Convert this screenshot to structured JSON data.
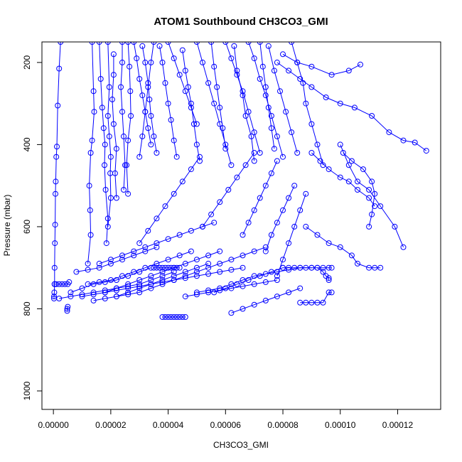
{
  "chart_data": {
    "type": "line",
    "title": "ATOM1 Southbound CH3CO3_GMI",
    "xlabel": "CH3CO3_GMI",
    "ylabel": "Pressure (mbar)",
    "xlim": [
      -4e-06,
      0.000135
    ],
    "ylim": [
      1045,
      150
    ],
    "y_reversed": true,
    "x_ticks": [
      "0.00000",
      "0.00002",
      "0.00004",
      "0.00006",
      "0.00008",
      "0.00010",
      "0.00012"
    ],
    "x_tick_values": [
      0,
      2e-05,
      4e-05,
      6e-05,
      8e-05,
      0.0001,
      0.00012
    ],
    "y_ticks": [
      "200",
      "400",
      "600",
      "800",
      "1000"
    ],
    "y_tick_values": [
      200,
      400,
      600,
      800,
      1000
    ],
    "grid": false,
    "colors": {
      "series": "#0000ff"
    },
    "series": [
      {
        "x": [
          2.5e-06,
          2e-06,
          1.5e-06,
          1.2e-06,
          1e-06,
          8e-07,
          7e-07,
          6e-07,
          5e-07,
          4e-07,
          4e-07
        ],
        "y": [
          150,
          215,
          305,
          405,
          430,
          490,
          520,
          595,
          640,
          700,
          740
        ]
      },
      {
        "x": [
          4e-07,
          1e-06,
          2e-06,
          3e-06,
          4e-06,
          5e-06,
          5.5e-06
        ],
        "y": [
          740,
          740,
          740,
          740,
          740,
          740,
          735
        ]
      },
      {
        "x": [
          4e-07,
          3e-07,
          2e-07,
          2e-07
        ],
        "y": [
          740,
          760,
          770,
          775
        ]
      },
      {
        "x": [
          5e-06,
          4.8e-06,
          4.8e-06
        ],
        "y": [
          795,
          800,
          805
        ]
      },
      {
        "x": [
          1.35e-05,
          1.4e-05,
          1.42e-05,
          1.35e-05,
          1.3e-05,
          1.25e-05,
          1.28e-05,
          1.3e-05,
          1.2e-05
        ],
        "y": [
          150,
          270,
          320,
          390,
          420,
          500,
          560,
          620,
          690
        ]
      },
      {
        "x": [
          1.6e-05,
          1.65e-05,
          1.7e-05,
          1.75e-05,
          1.8e-05,
          1.78e-05,
          1.82e-05,
          1.9e-05,
          1.85e-05
        ],
        "y": [
          150,
          240,
          310,
          360,
          400,
          450,
          510,
          580,
          640
        ]
      },
      {
        "x": [
          1.9e-05,
          1.95e-05,
          1.9e-05,
          1.95e-05,
          2e-05,
          1.98e-05,
          2e-05,
          1.9e-05
        ],
        "y": [
          150,
          260,
          330,
          380,
          430,
          470,
          530,
          600
        ]
      },
      {
        "x": [
          2.1e-05,
          2.1e-05,
          2.05e-05,
          2.1e-05,
          2.2e-05,
          2.15e-05,
          2.2e-05
        ],
        "y": [
          180,
          230,
          290,
          350,
          410,
          470,
          530
        ]
      },
      {
        "x": [
          2.4e-05,
          2.4e-05,
          2.35e-05,
          2.4e-05,
          2.45e-05,
          2.5e-05,
          2.45e-05
        ],
        "y": [
          150,
          200,
          260,
          320,
          380,
          450,
          510
        ]
      },
      {
        "x": [
          2.6e-05,
          2.65e-05,
          2.68e-05,
          2.7e-05,
          2.6e-05,
          2.55e-05,
          2.6e-05
        ],
        "y": [
          150,
          210,
          270,
          330,
          390,
          450,
          520
        ]
      },
      {
        "x": [
          2.8e-05,
          2.9e-05,
          3e-05,
          3.1e-05,
          3.2e-05,
          3.3e-05,
          3.4e-05
        ],
        "y": [
          150,
          190,
          240,
          280,
          320,
          360,
          400
        ]
      },
      {
        "x": [
          3.1e-05,
          3.2e-05,
          3.3e-05,
          3.35e-05,
          3.4e-05,
          3.5e-05,
          3.6e-05
        ],
        "y": [
          160,
          200,
          250,
          290,
          330,
          380,
          420
        ]
      },
      {
        "x": [
          3.5e-05,
          3.4e-05,
          3.3e-05,
          3.2e-05,
          3.1e-05,
          3e-05
        ],
        "y": [
          150,
          200,
          260,
          320,
          380,
          430
        ]
      },
      {
        "x": [
          3.7e-05,
          3.8e-05,
          3.9e-05,
          4e-05,
          4.1e-05,
          4.2e-05,
          4.3e-05
        ],
        "y": [
          160,
          200,
          250,
          300,
          340,
          390,
          430
        ]
      },
      {
        "x": [
          4e-05,
          4.2e-05,
          4.4e-05,
          4.6e-05,
          4.8e-05,
          5e-05
        ],
        "y": [
          150,
          190,
          230,
          270,
          310,
          350
        ]
      },
      {
        "x": [
          4.5e-05,
          4.6e-05,
          4.7e-05,
          4.8e-05,
          4.9e-05,
          5e-05,
          5.1e-05
        ],
        "y": [
          170,
          220,
          260,
          300,
          350,
          400,
          440
        ]
      },
      {
        "x": [
          5e-05,
          5.2e-05,
          5.4e-05,
          5.6e-05,
          5.8e-05,
          6e-05,
          6.2e-05
        ],
        "y": [
          150,
          200,
          250,
          300,
          350,
          400,
          450
        ]
      },
      {
        "x": [
          5.5e-05,
          5.6e-05,
          5.7e-05,
          5.8e-05,
          5.9e-05,
          6e-05
        ],
        "y": [
          150,
          210,
          260,
          310,
          360,
          410
        ]
      },
      {
        "x": [
          6e-05,
          6.2e-05,
          6.4e-05,
          6.6e-05,
          6.8e-05,
          7e-05,
          7.2e-05
        ],
        "y": [
          150,
          190,
          230,
          270,
          320,
          370,
          420
        ]
      },
      {
        "x": [
          6.3e-05,
          6.4e-05,
          6.6e-05,
          6.7e-05,
          6.9e-05,
          7e-05
        ],
        "y": [
          160,
          220,
          280,
          330,
          380,
          440
        ]
      },
      {
        "x": [
          6.8e-05,
          7e-05,
          7.2e-05,
          7.4e-05,
          7.6e-05,
          7.8e-05,
          8e-05
        ],
        "y": [
          150,
          190,
          240,
          280,
          330,
          380,
          430
        ]
      },
      {
        "x": [
          7.2e-05,
          7.3e-05,
          7.4e-05,
          7.5e-05,
          7.6e-05,
          7.7e-05
        ],
        "y": [
          150,
          210,
          260,
          310,
          360,
          410
        ]
      },
      {
        "x": [
          7.5e-05,
          7.7e-05,
          7.9e-05,
          8.1e-05,
          8.3e-05,
          8.5e-05
        ],
        "y": [
          160,
          220,
          270,
          320,
          370,
          420
        ]
      },
      {
        "x": [
          7.8e-05,
          8.2e-05,
          8.6e-05,
          9e-05,
          9.5e-05,
          0.0001,
          0.000105,
          0.000111,
          0.000117,
          0.000122,
          0.000126,
          0.00013
        ],
        "y": [
          200,
          220,
          240,
          260,
          285,
          300,
          310,
          330,
          370,
          390,
          395,
          415
        ]
      },
      {
        "x": [
          8e-05,
          8.5e-05,
          9e-05,
          9.7e-05,
          0.000103,
          0.000107
        ],
        "y": [
          180,
          200,
          210,
          230,
          220,
          205
        ]
      },
      {
        "x": [
          8.3e-05,
          8.5e-05,
          8.7e-05,
          8.8e-05,
          9e-05,
          9.2e-05,
          9.4e-05
        ],
        "y": [
          150,
          200,
          250,
          300,
          350,
          400,
          450
        ]
      },
      {
        "x": [
          9e-05,
          9.3e-05,
          9.6e-05,
          0.0001,
          0.000103,
          0.000106,
          0.00011,
          0.000112
        ],
        "y": [
          420,
          440,
          460,
          480,
          490,
          510,
          530,
          550
        ]
      },
      {
        "x": [
          0.000101,
          0.000104,
          0.000108,
          0.000111,
          0.000112,
          0.000111,
          0.00011
        ],
        "y": [
          420,
          440,
          460,
          490,
          520,
          570,
          600
        ]
      },
      {
        "x": [
          0.0001,
          0.000103,
          0.000106,
          0.00011,
          0.000114,
          0.000119,
          0.000122
        ],
        "y": [
          400,
          450,
          490,
          510,
          550,
          600,
          650
        ]
      },
      {
        "x": [
          8.8e-05,
          9.2e-05,
          9.6e-05,
          0.0001,
          0.000104,
          0.000106,
          0.00011,
          0.000112,
          0.000114
        ],
        "y": [
          600,
          620,
          640,
          650,
          670,
          690,
          700,
          700,
          700
        ]
      },
      {
        "x": [
          2e-06,
          6e-06,
          1e-05,
          1.4e-05,
          1.8e-05,
          2.2e-05,
          2.6e-05,
          3e-05,
          3.4e-05,
          3.8e-05,
          4.2e-05
        ],
        "y": [
          775,
          770,
          765,
          760,
          755,
          750,
          745,
          740,
          730,
          720,
          710
        ]
      },
      {
        "x": [
          1e-05,
          1.4e-05,
          1.8e-05,
          2.2e-05,
          2.6e-05,
          3e-05,
          3.4e-05,
          3.8e-05,
          4.2e-05,
          4.6e-05,
          5e-05,
          5.4e-05,
          5.8e-05
        ],
        "y": [
          770,
          765,
          760,
          750,
          740,
          730,
          720,
          710,
          700,
          690,
          680,
          670,
          660
        ]
      },
      {
        "x": [
          1.4e-05,
          1.8e-05,
          2.2e-05,
          2.6e-05,
          3e-05,
          3.4e-05,
          3.8e-05,
          4.2e-05,
          4.6e-05,
          5e-05,
          5.4e-05
        ],
        "y": [
          780,
          775,
          770,
          760,
          750,
          740,
          730,
          720,
          710,
          700,
          690
        ]
      },
      {
        "x": [
          1.8e-05,
          2.2e-05,
          2.6e-05,
          3e-05,
          3.4e-05,
          3.8e-05,
          4.2e-05,
          4.6e-05,
          5e-05,
          5.4e-05,
          5.8e-05,
          6.2e-05,
          6.6e-05
        ],
        "y": [
          760,
          755,
          750,
          745,
          740,
          735,
          730,
          725,
          720,
          715,
          710,
          705,
          700
        ]
      },
      {
        "x": [
          2.2e-05,
          2.6e-05,
          3e-05,
          3.4e-05,
          3.8e-05,
          4.2e-05,
          4.6e-05,
          5e-05,
          5.4e-05,
          5.8e-05,
          6.2e-05,
          6.6e-05,
          7e-05,
          7.4e-05
        ],
        "y": [
          770,
          765,
          760,
          750,
          740,
          730,
          720,
          710,
          700,
          690,
          680,
          670,
          660,
          650
        ]
      },
      {
        "x": [
          3.5e-05,
          3.6e-05,
          3.7e-05,
          3.8e-05,
          3.9e-05,
          4e-05,
          4.1e-05,
          4.2e-05,
          4.3e-05,
          4.4e-05
        ],
        "y": [
          700,
          700,
          700,
          700,
          700,
          700,
          700,
          700,
          700,
          700
        ]
      },
      {
        "x": [
          3.8e-05,
          3.9e-05,
          4e-05,
          4.1e-05,
          4.2e-05,
          4.3e-05,
          4.4e-05,
          4.5e-05,
          4.6e-05
        ],
        "y": [
          820,
          820,
          820,
          820,
          820,
          820,
          820,
          820,
          820
        ]
      },
      {
        "x": [
          4.6e-05,
          5e-05,
          5.4e-05,
          5.8e-05,
          6.2e-05,
          6.6e-05,
          7e-05,
          7.4e-05,
          7.8e-05
        ],
        "y": [
          770,
          765,
          760,
          755,
          750,
          745,
          740,
          735,
          730
        ]
      },
      {
        "x": [
          5e-05,
          5.4e-05,
          5.8e-05,
          6.2e-05,
          6.6e-05,
          7e-05,
          7.4e-05,
          7.8e-05,
          8.2e-05,
          8.6e-05,
          9e-05
        ],
        "y": [
          760,
          755,
          750,
          740,
          730,
          720,
          715,
          710,
          705,
          700,
          700
        ]
      },
      {
        "x": [
          8e-05,
          8.2e-05,
          8.4e-05,
          8.6e-05,
          8.8e-05,
          9e-05,
          9.2e-05,
          9.4e-05,
          9.6e-05,
          9.7e-05
        ],
        "y": [
          700,
          700,
          700,
          700,
          700,
          700,
          700,
          700,
          700,
          700
        ]
      },
      {
        "x": [
          8.6e-05,
          8.8e-05,
          9e-05,
          9.2e-05,
          9.4e-05,
          9.6e-05,
          9.7e-05
        ],
        "y": [
          785,
          785,
          785,
          785,
          785,
          760,
          760
        ]
      },
      {
        "x": [
          9.2e-05,
          9.4e-05,
          9.5e-05,
          9.6e-05,
          9.6e-05
        ],
        "y": [
          700,
          710,
          720,
          725,
          730
        ]
      },
      {
        "x": [
          6e-06,
          1e-05,
          1.4e-05,
          1.8e-05,
          2.2e-05,
          2.6e-05,
          3e-05,
          3.4e-05
        ],
        "y": [
          760,
          750,
          740,
          735,
          730,
          720,
          710,
          700
        ]
      },
      {
        "x": [
          8e-06,
          1.2e-05,
          1.6e-05,
          2e-05,
          2.4e-05,
          2.8e-05,
          3.2e-05,
          3.6e-05
        ],
        "y": [
          710,
          705,
          700,
          690,
          680,
          670,
          660,
          650
        ]
      },
      {
        "x": [
          1.2e-05,
          1.6e-05,
          2e-05,
          2.4e-05,
          2.8e-05,
          3.2e-05,
          3.6e-05,
          4e-05,
          4.4e-05,
          4.8e-05
        ],
        "y": [
          740,
          735,
          730,
          720,
          710,
          700,
          690,
          680,
          670,
          660
        ]
      },
      {
        "x": [
          1.6e-05,
          2e-05,
          2.4e-05,
          2.8e-05,
          3.2e-05,
          3.6e-05,
          4e-05,
          4.4e-05,
          4.8e-05,
          5.2e-05,
          5.6e-05
        ],
        "y": [
          690,
          680,
          670,
          660,
          650,
          640,
          630,
          620,
          610,
          600,
          590
        ]
      },
      {
        "x": [
          5.6e-05,
          6e-05,
          6.4e-05,
          6.8e-05,
          7.2e-05,
          7.6e-05,
          8e-05
        ],
        "y": [
          760,
          750,
          740,
          730,
          720,
          710,
          700
        ]
      },
      {
        "x": [
          6.2e-05,
          6.6e-05,
          7e-05,
          7.4e-05,
          7.8e-05,
          8.2e-05,
          8.6e-05
        ],
        "y": [
          810,
          800,
          790,
          780,
          770,
          760,
          750
        ]
      },
      {
        "x": [
          3e-05,
          3.3e-05,
          3.6e-05,
          3.9e-05,
          4.2e-05,
          4.5e-05,
          4.8e-05,
          5.1e-05
        ],
        "y": [
          640,
          610,
          580,
          550,
          520,
          490,
          460,
          430
        ]
      },
      {
        "x": [
          5.2e-05,
          5.5e-05,
          5.8e-05,
          6.1e-05,
          6.4e-05,
          6.7e-05,
          7e-05
        ],
        "y": [
          600,
          570,
          540,
          510,
          480,
          450,
          420
        ]
      },
      {
        "x": [
          6.6e-05,
          6.8e-05,
          7e-05,
          7.2e-05,
          7.4e-05,
          7.6e-05,
          7.8e-05
        ],
        "y": [
          620,
          590,
          560,
          530,
          500,
          470,
          440
        ]
      },
      {
        "x": [
          7.4e-05,
          7.6e-05,
          7.8e-05,
          8e-05,
          8.2e-05,
          8.4e-05
        ],
        "y": [
          660,
          620,
          590,
          560,
          530,
          500
        ]
      },
      {
        "x": [
          7.8e-05,
          8e-05,
          8.2e-05,
          8.4e-05,
          8.6e-05,
          8.8e-05
        ],
        "y": [
          720,
          680,
          640,
          600,
          560,
          520
        ]
      }
    ]
  }
}
